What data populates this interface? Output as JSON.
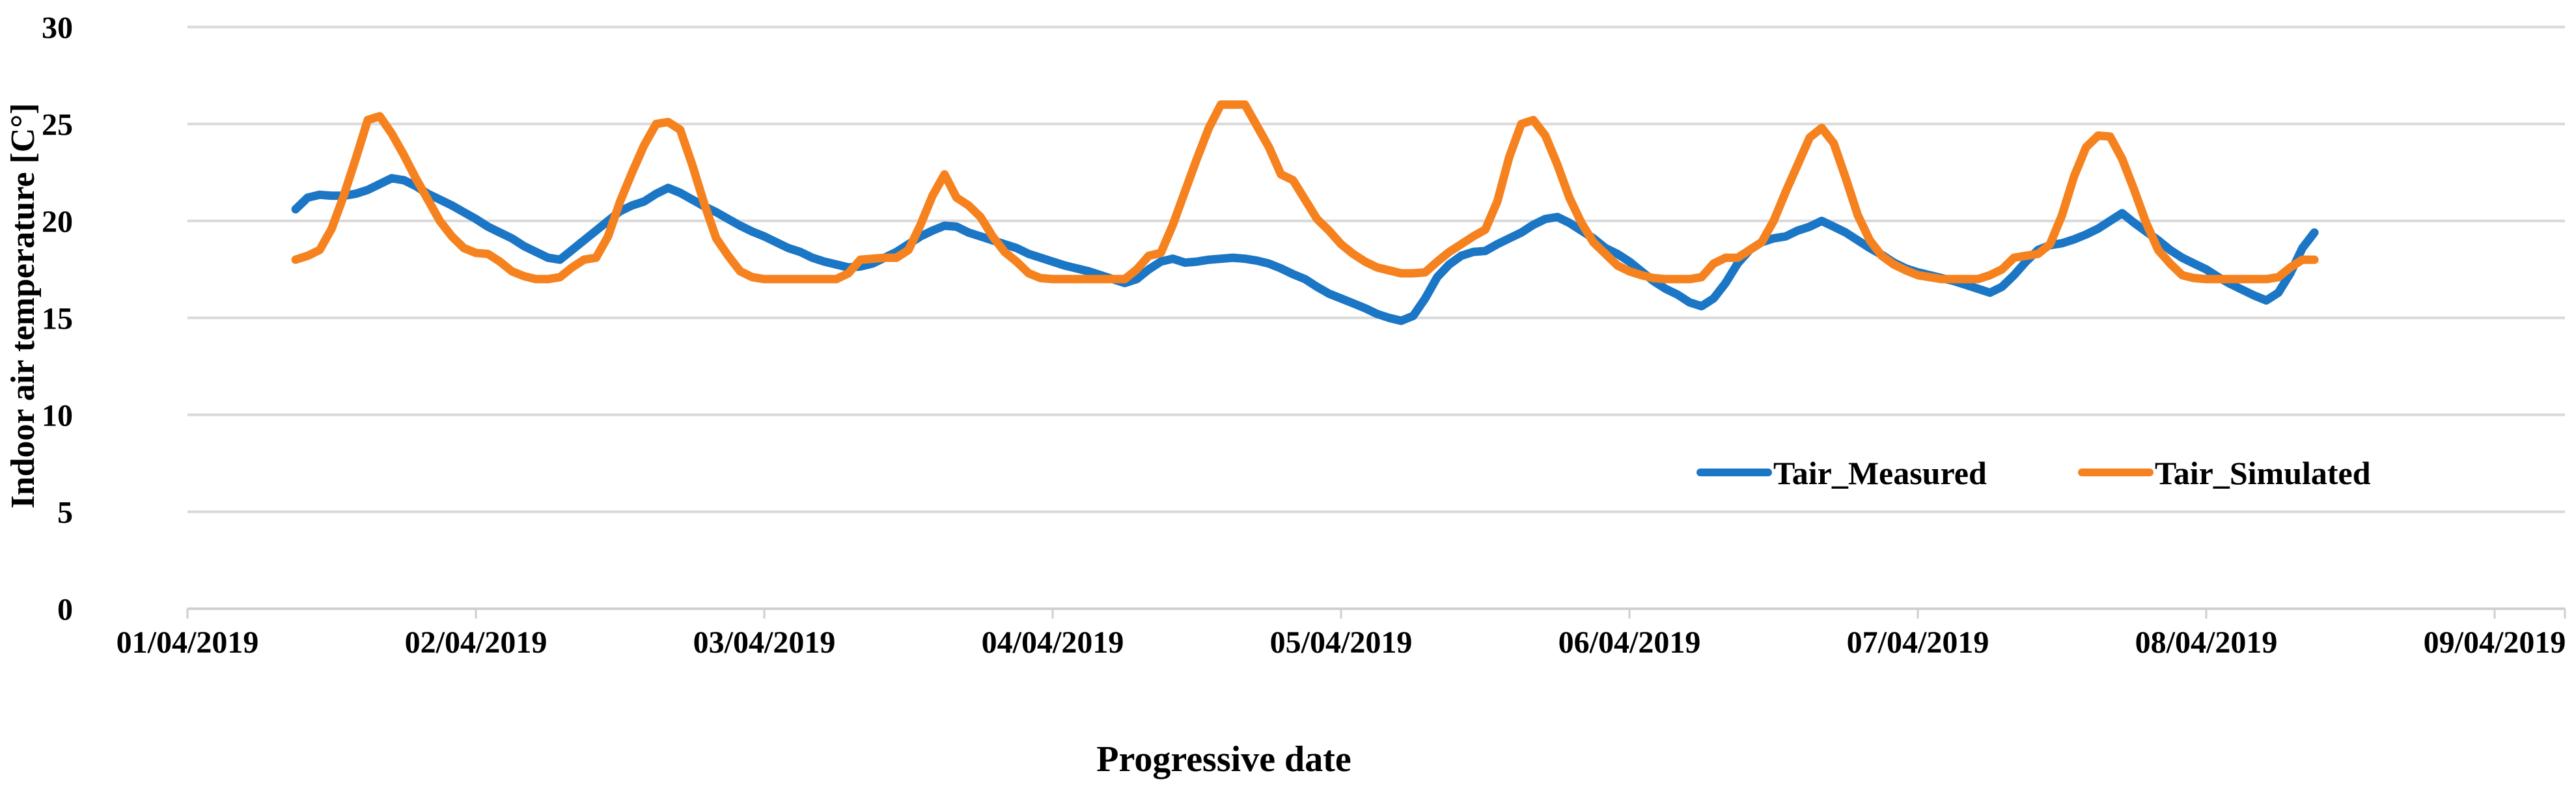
{
  "chart_data": {
    "type": "line",
    "title": "",
    "xlabel": "Progressive date",
    "ylabel": "Indoor air temperature [C°]",
    "grid": "horizontal",
    "legend_position": "inside-right-middle",
    "background_color": "#ffffff",
    "grid_color": "#d9d9d9",
    "axis_color": "#cfcfcf",
    "text_color": "#000000",
    "ylim": [
      0,
      30
    ],
    "y_ticks": [
      0,
      5,
      10,
      15,
      20,
      25,
      30
    ],
    "x_tick_labels": [
      "01/04/2019",
      "02/04/2019",
      "03/04/2019",
      "04/04/2019",
      "05/04/2019",
      "06/04/2019",
      "07/04/2019",
      "08/04/2019",
      "09/04/2019"
    ],
    "x_axis": {
      "start_date": "01/04/2019",
      "end_date": "09/04/2019",
      "days_shown": 8
    },
    "sampling": {
      "start_hour": 9,
      "interval_hours": 1,
      "points_per_series": 169
    },
    "series": [
      {
        "name": "Tair_Measured",
        "color": "#1b76c5",
        "values": [
          20.6,
          21.2,
          21.35,
          21.3,
          21.3,
          21.4,
          21.6,
          21.9,
          22.2,
          22.1,
          21.8,
          21.4,
          21.1,
          20.8,
          20.45,
          20.1,
          19.7,
          19.4,
          19.1,
          18.7,
          18.4,
          18.1,
          18.0,
          18.5,
          19.0,
          19.5,
          20.0,
          20.5,
          20.8,
          21.0,
          21.4,
          21.7,
          21.45,
          21.1,
          20.75,
          20.45,
          20.1,
          19.75,
          19.45,
          19.2,
          18.9,
          18.6,
          18.4,
          18.1,
          17.9,
          17.75,
          17.6,
          17.65,
          17.8,
          18.1,
          18.4,
          18.8,
          19.2,
          19.5,
          19.75,
          19.7,
          19.4,
          19.2,
          19.0,
          18.8,
          18.6,
          18.3,
          18.1,
          17.9,
          17.7,
          17.55,
          17.4,
          17.2,
          17.0,
          16.8,
          17.0,
          17.5,
          17.9,
          18.05,
          17.85,
          17.9,
          18.0,
          18.05,
          18.1,
          18.05,
          17.95,
          17.8,
          17.55,
          17.25,
          17.0,
          16.6,
          16.25,
          16.0,
          15.75,
          15.5,
          15.2,
          15.0,
          14.85,
          15.1,
          16.0,
          17.1,
          17.75,
          18.2,
          18.4,
          18.45,
          18.8,
          19.1,
          19.4,
          19.8,
          20.1,
          20.2,
          19.9,
          19.5,
          19.1,
          18.6,
          18.3,
          17.9,
          17.4,
          16.9,
          16.5,
          16.2,
          15.8,
          15.6,
          16.0,
          16.8,
          17.8,
          18.5,
          18.9,
          19.1,
          19.2,
          19.5,
          19.7,
          20.0,
          19.7,
          19.4,
          19.0,
          18.6,
          18.25,
          17.85,
          17.55,
          17.35,
          17.2,
          17.05,
          16.9,
          16.7,
          16.5,
          16.3,
          16.6,
          17.2,
          17.9,
          18.5,
          18.75,
          18.85,
          19.05,
          19.3,
          19.6,
          20.0,
          20.4,
          19.9,
          19.45,
          19.0,
          18.5,
          18.1,
          17.8,
          17.5,
          17.1,
          16.75,
          16.45,
          16.15,
          15.9,
          16.3,
          17.3,
          18.6,
          19.4
        ]
      },
      {
        "name": "Tair_Simulated",
        "color": "#f6821f",
        "values": [
          18.0,
          18.2,
          18.5,
          19.6,
          21.3,
          23.2,
          25.2,
          25.4,
          24.5,
          23.4,
          22.2,
          21.1,
          20.0,
          19.2,
          18.6,
          18.35,
          18.3,
          17.9,
          17.4,
          17.15,
          17.0,
          17.0,
          17.1,
          17.6,
          18.0,
          18.1,
          19.2,
          21.0,
          22.5,
          23.9,
          25.0,
          25.1,
          24.7,
          22.9,
          20.9,
          19.1,
          18.2,
          17.4,
          17.1,
          17.0,
          17.0,
          17.0,
          17.0,
          17.0,
          17.0,
          17.0,
          17.3,
          18.0,
          18.05,
          18.1,
          18.1,
          18.5,
          19.8,
          21.3,
          22.4,
          21.2,
          20.8,
          20.2,
          19.2,
          18.4,
          17.9,
          17.3,
          17.05,
          17.0,
          17.0,
          17.0,
          17.0,
          17.0,
          17.0,
          17.0,
          17.5,
          18.2,
          18.35,
          19.8,
          21.5,
          23.2,
          24.8,
          26.0,
          26.0,
          26.0,
          24.9,
          23.8,
          22.4,
          22.1,
          21.1,
          20.1,
          19.5,
          18.8,
          18.3,
          17.9,
          17.6,
          17.45,
          17.3,
          17.3,
          17.35,
          17.9,
          18.4,
          18.8,
          19.2,
          19.55,
          21.0,
          23.3,
          25.0,
          25.2,
          24.4,
          22.9,
          21.2,
          19.9,
          18.9,
          18.3,
          17.7,
          17.4,
          17.2,
          17.05,
          17.0,
          17.0,
          17.0,
          17.1,
          17.8,
          18.1,
          18.1,
          18.5,
          18.9,
          20.0,
          21.5,
          22.9,
          24.3,
          24.8,
          24.0,
          22.2,
          20.3,
          19.0,
          18.2,
          17.75,
          17.45,
          17.2,
          17.1,
          17.0,
          17.0,
          17.0,
          17.0,
          17.2,
          17.5,
          18.1,
          18.2,
          18.3,
          18.8,
          20.3,
          22.3,
          23.8,
          24.4,
          24.35,
          23.2,
          21.6,
          19.9,
          18.5,
          17.8,
          17.2,
          17.05,
          17.0,
          17.0,
          17.0,
          17.0,
          17.0,
          17.0,
          17.1,
          17.6,
          18.0,
          18.0
        ]
      }
    ]
  }
}
